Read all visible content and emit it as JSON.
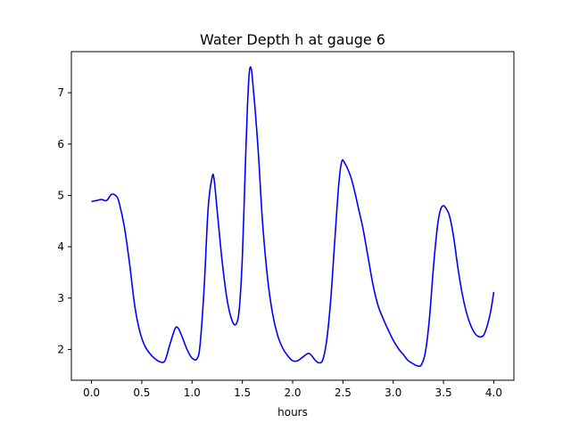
{
  "chart_data": {
    "type": "line",
    "title": "Water Depth h at gauge 6",
    "xlabel": "hours",
    "ylabel": "",
    "xlim": [
      -0.2,
      4.2
    ],
    "ylim": [
      1.4,
      7.8
    ],
    "grid": false,
    "x_ticks": [
      0.0,
      0.5,
      1.0,
      1.5,
      2.0,
      2.5,
      3.0,
      3.5,
      4.0
    ],
    "x_tick_labels": [
      "0.0",
      "0.5",
      "1.0",
      "1.5",
      "2.0",
      "2.5",
      "3.0",
      "3.5",
      "4.0"
    ],
    "y_ticks": [
      2,
      3,
      4,
      5,
      6,
      7
    ],
    "y_tick_labels": [
      "2",
      "3",
      "4",
      "5",
      "6",
      "7"
    ],
    "series": [
      {
        "color": "#0000ff",
        "x": [
          0.0,
          0.05,
          0.1,
          0.15,
          0.2,
          0.25,
          0.28,
          0.33,
          0.38,
          0.43,
          0.48,
          0.53,
          0.58,
          0.63,
          0.68,
          0.73,
          0.78,
          0.83,
          0.86,
          0.9,
          0.95,
          1.0,
          1.05,
          1.08,
          1.12,
          1.16,
          1.2,
          1.22,
          1.25,
          1.3,
          1.35,
          1.4,
          1.44,
          1.47,
          1.5,
          1.53,
          1.55,
          1.57,
          1.59,
          1.61,
          1.63,
          1.66,
          1.7,
          1.75,
          1.8,
          1.85,
          1.9,
          1.95,
          2.0,
          2.05,
          2.1,
          2.15,
          2.18,
          2.22,
          2.26,
          2.3,
          2.34,
          2.38,
          2.42,
          2.46,
          2.49,
          2.52,
          2.54,
          2.58,
          2.62,
          2.66,
          2.7,
          2.75,
          2.8,
          2.85,
          2.9,
          2.95,
          3.0,
          3.05,
          3.1,
          3.15,
          3.2,
          3.24,
          3.28,
          3.32,
          3.36,
          3.4,
          3.44,
          3.47,
          3.5,
          3.53,
          3.56,
          3.6,
          3.65,
          3.7,
          3.75,
          3.8,
          3.85,
          3.9,
          3.94,
          3.97,
          4.0
        ],
        "y": [
          4.88,
          4.9,
          4.92,
          4.9,
          5.02,
          4.98,
          4.82,
          4.35,
          3.65,
          2.85,
          2.35,
          2.07,
          1.92,
          1.82,
          1.76,
          1.78,
          2.1,
          2.4,
          2.42,
          2.25,
          2.0,
          1.83,
          1.82,
          2.1,
          3.2,
          4.75,
          5.36,
          5.3,
          4.7,
          3.7,
          2.95,
          2.55,
          2.5,
          2.8,
          3.8,
          5.6,
          6.7,
          7.42,
          7.45,
          7.05,
          6.6,
          5.8,
          4.5,
          3.4,
          2.7,
          2.28,
          2.03,
          1.88,
          1.78,
          1.78,
          1.85,
          1.92,
          1.9,
          1.8,
          1.74,
          1.8,
          2.2,
          3.0,
          4.15,
          5.25,
          5.67,
          5.62,
          5.55,
          5.35,
          5.05,
          4.7,
          4.35,
          3.8,
          3.25,
          2.85,
          2.6,
          2.38,
          2.18,
          2.02,
          1.9,
          1.78,
          1.72,
          1.68,
          1.7,
          1.95,
          2.6,
          3.6,
          4.4,
          4.72,
          4.8,
          4.73,
          4.6,
          4.2,
          3.5,
          2.95,
          2.58,
          2.35,
          2.25,
          2.28,
          2.5,
          2.75,
          3.12
        ]
      }
    ]
  }
}
